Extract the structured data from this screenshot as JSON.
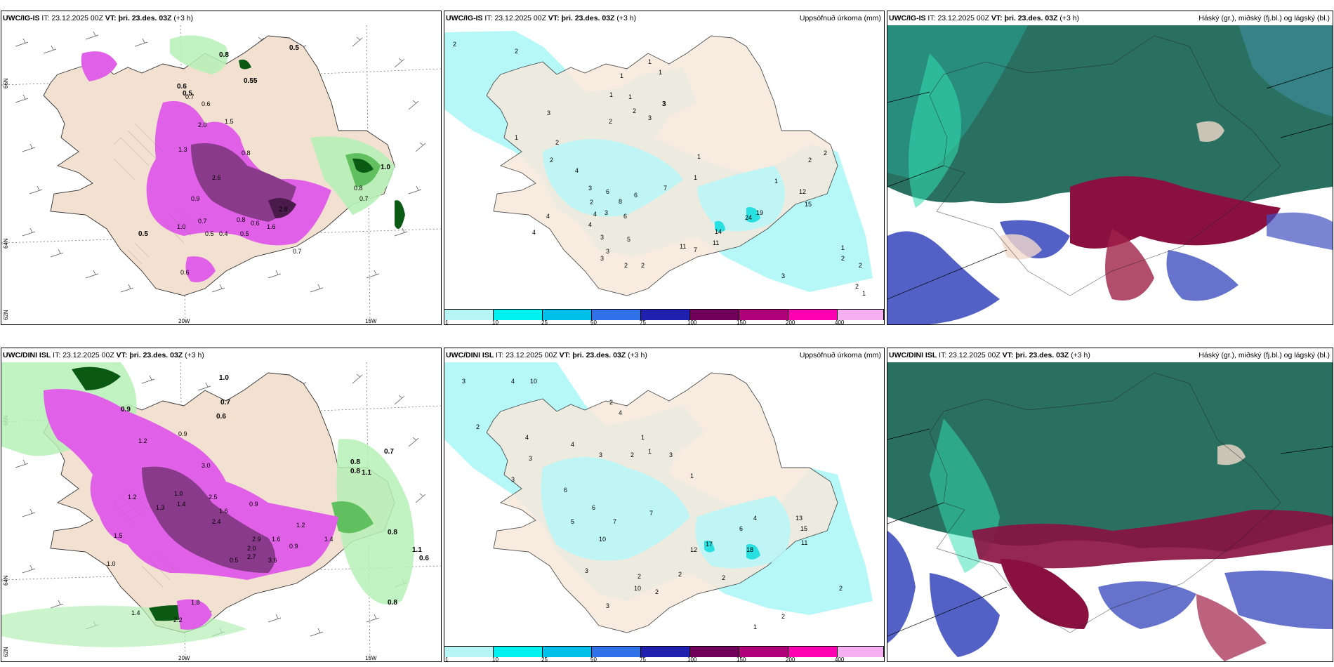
{
  "rows": [
    {
      "model": "UWC/IG-IS",
      "it_label": "IT:",
      "it_value": "23.12.2025 00Z",
      "vt_label": "VT: þri. 23.des. 03Z",
      "lead": "(+3 h)"
    },
    {
      "model": "UWC/DINI ISL",
      "it_label": "IT:",
      "it_value": "23.12.2025 00Z",
      "vt_label": "VT: þri. 23.des. 03Z",
      "lead": "(+3 h)"
    }
  ],
  "panel_titles": {
    "precip": "Uppsöfnuð úrkoma (mm)",
    "clouds": "Háský (gr.), miðský (fj.bl.) og lágský (bl.)"
  },
  "grid_labels": {
    "lat_66": "66N",
    "lat_64": "64N",
    "lat_62": "62N",
    "lon_20": "20W",
    "lon_15": "15W"
  },
  "legend": {
    "ticks": [
      "1",
      "10",
      "25",
      "50",
      "75",
      "100",
      "150",
      "200",
      "400"
    ],
    "colors": [
      "#b8f5f5",
      "#00f0f0",
      "#00c0e8",
      "#3070e8",
      "#2020b0",
      "#70005a",
      "#b0007a",
      "#ff00b0",
      "#f4b0f0"
    ]
  },
  "colors": {
    "land": "#f2e1d1",
    "precip_light": "#b6f7f7",
    "precip_cyan": "#28e0e0",
    "snow_light_green": "#b6f0b6",
    "snow_green": "#60c060",
    "snow_dark_green": "#0a5a14",
    "snow_magenta": "#e060e8",
    "snow_purple": "#8a3a8a",
    "cloud_teal": "#2a7060",
    "cloud_crimson": "#8a1040",
    "cloud_blue": "#4050c0",
    "cloud_aqua": "#30e0b0"
  },
  "maps": {
    "snow_top_labels": [
      "0.8",
      "0.5",
      "0.6",
      "0.5",
      "0.55",
      "0.7",
      "0.6",
      "2.0",
      "1.5",
      "0.8",
      "1.3",
      "2.6",
      "0.9",
      "0.7",
      "0.6",
      "0.8",
      "2.8",
      "1.6",
      "1.0",
      "0.5",
      "0.4",
      "0.5",
      "0.7",
      "0.5",
      "0.6",
      "0.8",
      "1.0",
      "0.7"
    ],
    "snow_bottom_labels": [
      "1.0",
      "0.7",
      "0.6",
      "0.9",
      "1.2",
      "0.9",
      "3.0",
      "2.5",
      "1.6",
      "2.4",
      "1.4",
      "1.2",
      "1.0",
      "1.3",
      "0.9",
      "2.9",
      "2.0",
      "1.6",
      "3.6",
      "0.5",
      "2.7",
      "0.9",
      "1.2",
      "0.8",
      "0.8",
      "1.1",
      "0.7",
      "1.4",
      "0.8",
      "1.1",
      "0.6",
      "0.8",
      "1.0",
      "1.5",
      "2.2",
      "1.8",
      "1.4"
    ],
    "precip_top_labels": [
      "2",
      "2",
      "1",
      "1",
      "1",
      "3",
      "1",
      "2",
      "1",
      "2",
      "3",
      "3",
      "2",
      "1",
      "2",
      "1",
      "4",
      "3",
      "6",
      "7",
      "3",
      "6",
      "8",
      "5",
      "4",
      "3",
      "6",
      "2",
      "3",
      "2",
      "3",
      "11",
      "7",
      "11",
      "14",
      "24",
      "19",
      "15",
      "12",
      "1",
      "2",
      "1",
      "2",
      "2",
      "3",
      "2",
      "1",
      "2",
      "4",
      "4",
      "2",
      "4",
      "1"
    ],
    "precip_bottom_labels": [
      "3",
      "4",
      "10",
      "2",
      "4",
      "3",
      "3",
      "2",
      "1",
      "4",
      "3",
      "4",
      "2",
      "3",
      "1",
      "6",
      "6",
      "5",
      "7",
      "10",
      "7",
      "12",
      "17",
      "18",
      "15",
      "13",
      "11",
      "2",
      "3",
      "2",
      "10",
      "3",
      "2",
      "1",
      "2",
      "1",
      "2",
      "6",
      "4",
      "2"
    ]
  }
}
